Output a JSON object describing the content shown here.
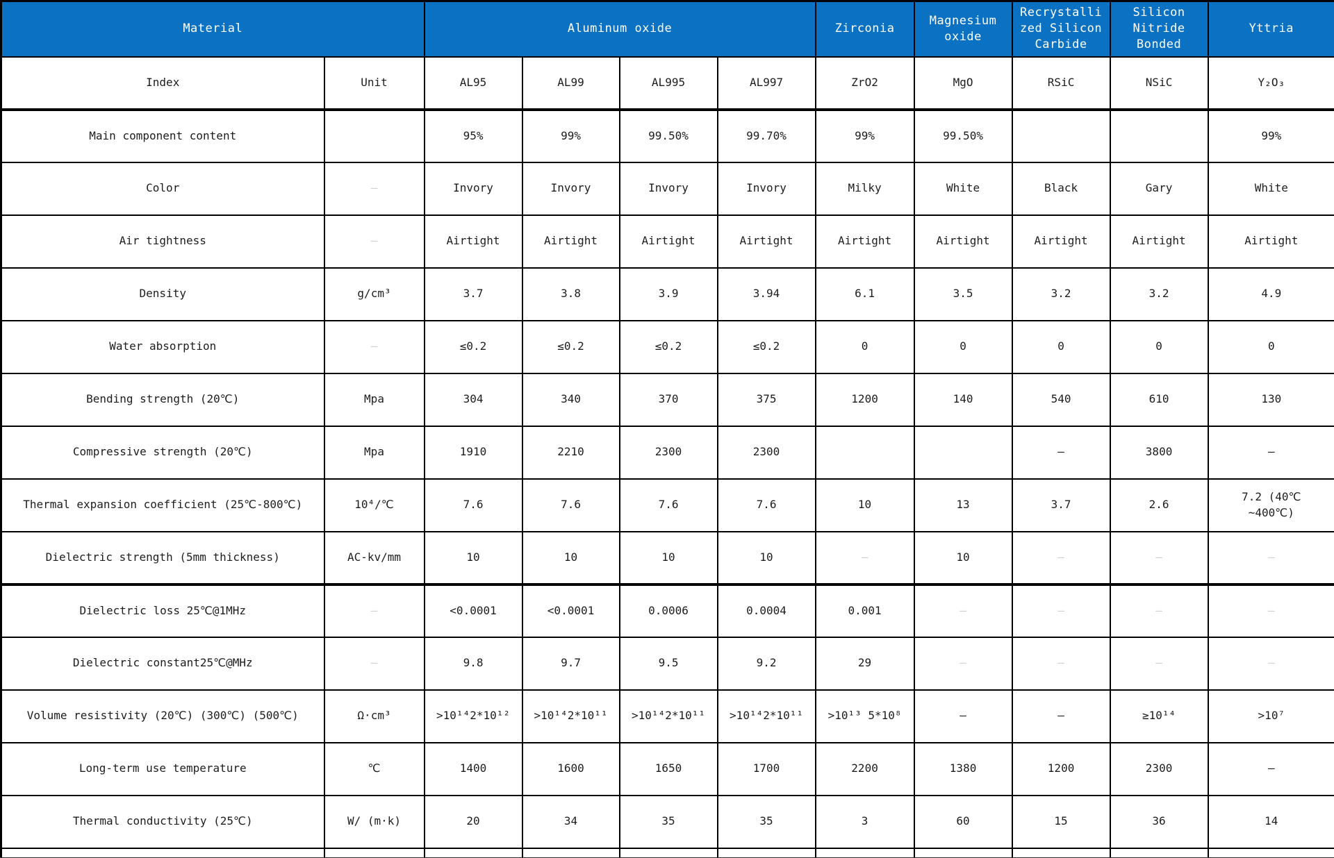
{
  "colors": {
    "header_bg": "#0b71c3",
    "header_fg": "#ffffff",
    "grid": "#000000",
    "text": "#1d1d1d",
    "muted_dash": "#cfcfcf"
  },
  "table": {
    "header": [
      {
        "label": "Material",
        "colspan": 2
      },
      {
        "label": "Aluminum oxide",
        "colspan": 4
      },
      {
        "label": "Zirconia",
        "colspan": 1
      },
      {
        "label": "Magnesium\noxide",
        "colspan": 1
      },
      {
        "label": "Recrystalli\nzed Silicon\nCarbide",
        "colspan": 1
      },
      {
        "label": "Silicon\nNitride\nBonded",
        "colspan": 1
      },
      {
        "label": "Yttria",
        "colspan": 1
      }
    ],
    "rows": [
      {
        "id": "index",
        "thick_bottom": true,
        "cells": [
          "Index",
          "Unit",
          "AL95",
          "AL99",
          "AL995",
          "AL997",
          "ZrO2",
          "MgO",
          "RSiC",
          "NSiC",
          "Y₂O₃"
        ]
      },
      {
        "id": "main-component-content",
        "cells": [
          "Main component content",
          "",
          "95%",
          "99%",
          "99.50%",
          "99.70%",
          "99%",
          "99.50%",
          "",
          "",
          "99%"
        ]
      },
      {
        "id": "color",
        "cells": [
          "Color",
          {
            "v": "–",
            "muted": true
          },
          "Invory",
          "Invory",
          "Invory",
          "Invory",
          "Milky",
          "White",
          "Black",
          "Gary",
          "White"
        ]
      },
      {
        "id": "air-tightness",
        "cells": [
          "Air tightness",
          {
            "v": "–",
            "muted": true
          },
          "Airtight",
          "Airtight",
          "Airtight",
          "Airtight",
          "Airtight",
          "Airtight",
          "Airtight",
          "Airtight",
          "Airtight"
        ]
      },
      {
        "id": "density",
        "cells": [
          "Density",
          "g/cm³",
          "3.7",
          "3.8",
          "3.9",
          "3.94",
          "6.1",
          "3.5",
          "3.2",
          "3.2",
          "4.9"
        ]
      },
      {
        "id": "water-absorption",
        "cells": [
          "Water absorption",
          {
            "v": "–",
            "muted": true
          },
          "≤0.2",
          "≤0.2",
          "≤0.2",
          "≤0.2",
          "0",
          "0",
          "0",
          "0",
          "0"
        ]
      },
      {
        "id": "bending-strength",
        "cells": [
          "Bending strength (20℃)",
          "Mpa",
          "304",
          "340",
          "370",
          "375",
          "1200",
          "140",
          "540",
          "610",
          "130"
        ]
      },
      {
        "id": "compressive-strength",
        "cells": [
          "Compressive strength (20℃)",
          "Mpa",
          "1910",
          "2210",
          "2300",
          "2300",
          "",
          "",
          "–",
          "3800",
          "–"
        ]
      },
      {
        "id": "thermal-expansion-coefficient",
        "cells": [
          "Thermal expansion coefficient (25℃-800℃)",
          "10⁴/℃",
          "7.6",
          "7.6",
          "7.6",
          "7.6",
          "10",
          "13",
          "3.7",
          "2.6",
          "7.2 (40℃\n~400℃)"
        ]
      },
      {
        "id": "dielectric-strength",
        "thick_bottom": true,
        "cells": [
          "Dielectric strength (5mm thickness)",
          "AC-kv/mm",
          "10",
          "10",
          "10",
          "10",
          {
            "v": "–",
            "muted": true
          },
          "10",
          {
            "v": "–",
            "muted": true
          },
          {
            "v": "–",
            "muted": true
          },
          {
            "v": "–",
            "muted": true
          }
        ]
      },
      {
        "id": "dielectric-loss",
        "cells": [
          "Dielectric loss 25℃@1MHz",
          {
            "v": "–",
            "muted": true
          },
          "<0.0001",
          "<0.0001",
          "0.0006",
          "0.0004",
          "0.001",
          {
            "v": "–",
            "muted": true
          },
          {
            "v": "–",
            "muted": true
          },
          {
            "v": "–",
            "muted": true
          },
          {
            "v": "–",
            "muted": true
          }
        ]
      },
      {
        "id": "dielectric-constant",
        "cells": [
          "Dielectric constant25℃@MHz",
          {
            "v": "–",
            "muted": true
          },
          "9.8",
          "9.7",
          "9.5",
          "9.2",
          "29",
          {
            "v": "–",
            "muted": true
          },
          {
            "v": "–",
            "muted": true
          },
          {
            "v": "–",
            "muted": true
          },
          {
            "v": "–",
            "muted": true
          }
        ]
      },
      {
        "id": "volume-resistivity",
        "cells": [
          "Volume resistivity (20℃) (300℃) (500℃)",
          "Ω·cm³",
          ">10¹⁴2*10¹²",
          ">10¹⁴2*10¹¹",
          ">10¹⁴2*10¹¹",
          ">10¹⁴2*10¹¹",
          ">10¹³ 5*10⁸",
          "–",
          "–",
          "≥10¹⁴",
          ">10⁷"
        ]
      },
      {
        "id": "long-term-use-temperature",
        "cells": [
          "Long-term use temperature",
          "℃",
          "1400",
          "1600",
          "1650",
          "1700",
          "2200",
          "1380",
          "1200",
          "2300",
          "–"
        ]
      },
      {
        "id": "thermal-conductivity",
        "cells": [
          "Thermal conductivity (25℃)",
          "W/ (m·k)",
          "20",
          "34",
          "35",
          "35",
          "3",
          "60",
          "15",
          "36",
          "14"
        ]
      },
      {
        "id": "footer-blank",
        "footer": true,
        "cells": [
          "",
          "",
          "",
          "",
          "",
          "",
          "",
          "",
          "",
          "",
          ""
        ]
      }
    ]
  }
}
